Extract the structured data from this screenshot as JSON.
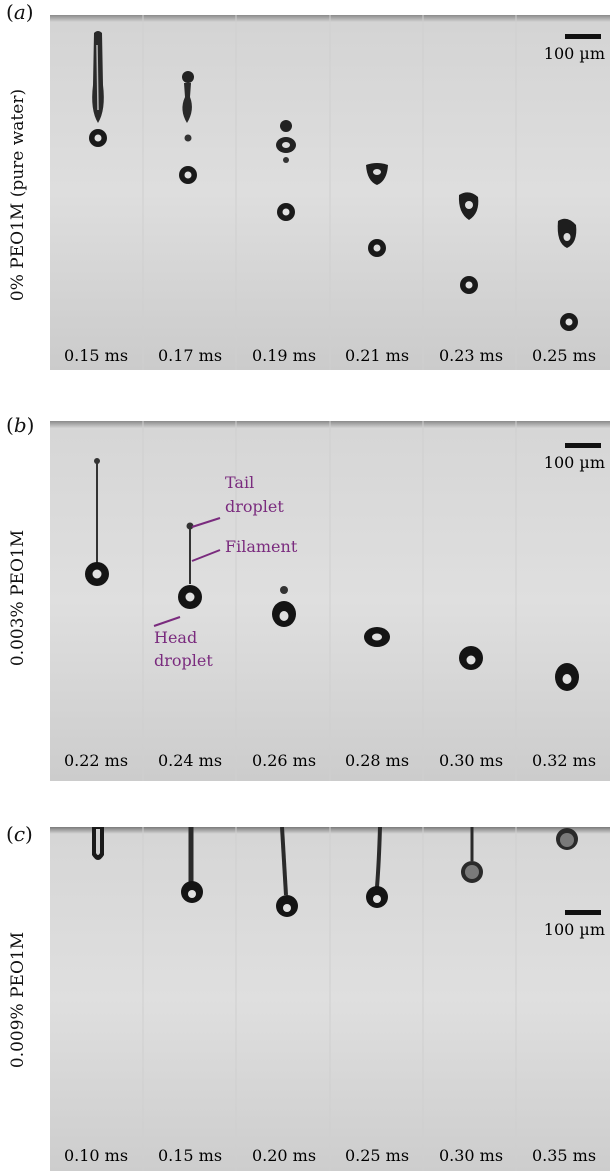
{
  "panels": [
    {
      "letter": "a",
      "side_label": "0% PEO1M (pure water)",
      "scale_bar": "100 µm",
      "times": [
        "0.15 ms",
        "0.17 ms",
        "0.19 ms",
        "0.21 ms",
        "0.23 ms",
        "0.25 ms"
      ]
    },
    {
      "letter": "b",
      "side_label": "0.003% PEO1M",
      "scale_bar": "100 µm",
      "times": [
        "0.22 ms",
        "0.24 ms",
        "0.26 ms",
        "0.28 ms",
        "0.30 ms",
        "0.32 ms"
      ],
      "annotations": {
        "tail": [
          "Tail",
          "droplet"
        ],
        "filament": "Filament",
        "head": [
          "Head",
          "droplet"
        ]
      }
    },
    {
      "letter": "c",
      "side_label": "0.009% PEO1M",
      "scale_bar": "100 µm",
      "times": [
        "0.10 ms",
        "0.15 ms",
        "0.20 ms",
        "0.25 ms",
        "0.30 ms",
        "0.35 ms"
      ]
    }
  ],
  "colors": {
    "annotation": "#7a2b7e",
    "frame_top": "#dcdcdc",
    "frame_bottom": "#c9c9c9"
  }
}
